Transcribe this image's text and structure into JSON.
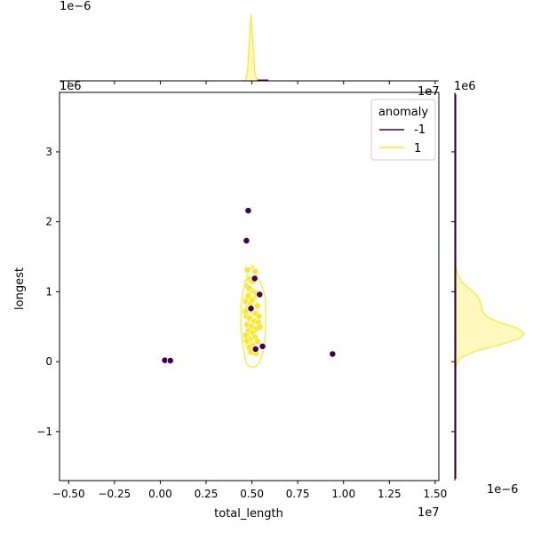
{
  "chart_data": {
    "type": "scatter",
    "kind": "joint-plot with marginal KDE",
    "x": {
      "label": "total_length",
      "multiplier": "1e7",
      "lim": [
        -5500000,
        15200000
      ],
      "ticks": [
        -0.5,
        -0.25,
        0.0,
        0.25,
        0.5,
        0.75,
        1.0,
        1.25,
        1.5
      ],
      "tick_labels": [
        "−0.50",
        "−0.25",
        "0.00",
        "0.25",
        "0.50",
        "0.75",
        "1.00",
        "1.25",
        "1.50"
      ]
    },
    "y": {
      "label": "longest",
      "multiplier": "1e6",
      "lim": [
        -1700000,
        3850000
      ],
      "ticks": [
        -1,
        0,
        1,
        2,
        3
      ],
      "tick_labels": [
        "−1",
        "0",
        "1",
        "2",
        "3"
      ]
    },
    "marginal_multiplier": "1e−6",
    "legend": {
      "title": "anomaly",
      "position": "top-right"
    },
    "series": [
      {
        "name": "-1",
        "color": "#440154",
        "points": [
          [
            250000,
            20000
          ],
          [
            550000,
            15000
          ],
          [
            4700000,
            1730000
          ],
          [
            4800000,
            2160000
          ],
          [
            5150000,
            1190000
          ],
          [
            5420000,
            960000
          ],
          [
            5580000,
            220000
          ],
          [
            9400000,
            110000
          ],
          [
            5200000,
            180000
          ],
          [
            4950000,
            760000
          ]
        ]
      },
      {
        "name": "1",
        "color": "#fde725",
        "cluster": {
          "x_range": [
            4650000,
            5450000
          ],
          "y_range": [
            100000,
            1300000
          ],
          "points": [
            [
              4750000,
              1310000
            ],
            [
              5180000,
              1290000
            ],
            [
              4860000,
              1180000
            ],
            [
              5050000,
              1150000
            ],
            [
              4720000,
              1080000
            ],
            [
              4980000,
              1020000
            ],
            [
              5230000,
              980000
            ],
            [
              4800000,
              940000
            ],
            [
              5100000,
              900000
            ],
            [
              4680000,
              860000
            ],
            [
              4920000,
              830000
            ],
            [
              5300000,
              800000
            ],
            [
              4760000,
              760000
            ],
            [
              5020000,
              720000
            ],
            [
              5200000,
              690000
            ],
            [
              4700000,
              650000
            ],
            [
              4880000,
              620000
            ],
            [
              5120000,
              580000
            ],
            [
              5350000,
              560000
            ],
            [
              4740000,
              530000
            ],
            [
              4960000,
              500000
            ],
            [
              5250000,
              470000
            ],
            [
              4820000,
              440000
            ],
            [
              5060000,
              410000
            ],
            [
              4680000,
              380000
            ],
            [
              5180000,
              350000
            ],
            [
              4900000,
              320000
            ],
            [
              5300000,
              290000
            ],
            [
              4780000,
              260000
            ],
            [
              5040000,
              230000
            ],
            [
              4860000,
              200000
            ],
            [
              5150000,
              170000
            ],
            [
              4950000,
              140000
            ],
            [
              5220000,
              120000
            ],
            [
              4720000,
              300000
            ],
            [
              5380000,
              650000
            ],
            [
              4650000,
              720000
            ],
            [
              5440000,
              500000
            ],
            [
              4840000,
              1050000
            ],
            [
              5000000,
              880000
            ]
          ]
        }
      }
    ],
    "marginal_x_kde": {
      "series": "1",
      "color": "#fde725",
      "points": [
        [
          4500000,
          0
        ],
        [
          4650000,
          0.01
        ],
        [
          4750000,
          0.12
        ],
        [
          4850000,
          0.55
        ],
        [
          4950000,
          1.0
        ],
        [
          5050000,
          0.58
        ],
        [
          5150000,
          0.14
        ],
        [
          5250000,
          0.03
        ],
        [
          5400000,
          0
        ]
      ]
    },
    "marginal_y_kde": {
      "series": "1",
      "color": "#fde725",
      "points": [
        [
          -100000,
          0
        ],
        [
          50000,
          0.07
        ],
        [
          150000,
          0.3
        ],
        [
          250000,
          0.68
        ],
        [
          330000,
          0.93
        ],
        [
          400000,
          1.0
        ],
        [
          480000,
          0.9
        ],
        [
          560000,
          0.65
        ],
        [
          640000,
          0.46
        ],
        [
          720000,
          0.4
        ],
        [
          800000,
          0.38
        ],
        [
          880000,
          0.36
        ],
        [
          950000,
          0.32
        ],
        [
          1050000,
          0.2
        ],
        [
          1150000,
          0.09
        ],
        [
          1300000,
          0.025
        ],
        [
          1450000,
          0.005
        ],
        [
          1600000,
          0
        ]
      ]
    }
  }
}
